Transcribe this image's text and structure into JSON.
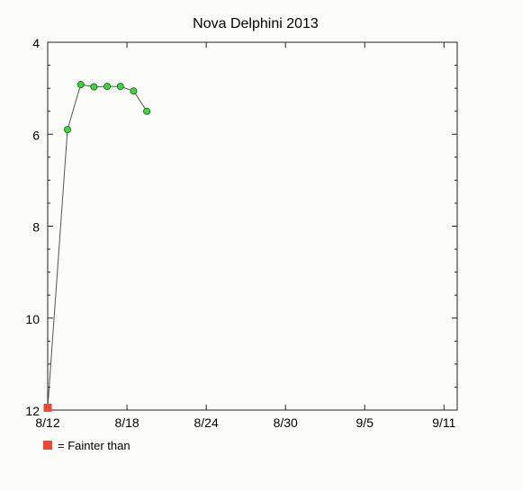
{
  "chart_data": {
    "type": "scatter",
    "title": "Nova Delphini 2013",
    "xlabel": "",
    "ylabel": "",
    "x_ticks": [
      {
        "value": "2013-08-12",
        "label": "8/12"
      },
      {
        "value": "2013-08-18",
        "label": "8/18"
      },
      {
        "value": "2013-08-24",
        "label": "8/24"
      },
      {
        "value": "2013-08-30",
        "label": "8/30"
      },
      {
        "value": "2013-09-05",
        "label": "9/5"
      },
      {
        "value": "2013-09-11",
        "label": "9/11"
      }
    ],
    "xlim": [
      "2013-08-12",
      "2013-09-12"
    ],
    "y_ticks": [
      4,
      6,
      8,
      10,
      12
    ],
    "ylim": [
      12,
      4
    ],
    "y_inverted": true,
    "grid": false,
    "series": [
      {
        "marker": "circle",
        "color": "#3ed43e",
        "points": [
          {
            "x": "2013-08-13 12:00",
            "y": 5.9
          },
          {
            "x": "2013-08-14 12:00",
            "y": 4.92
          },
          {
            "x": "2013-08-15 12:00",
            "y": 4.97
          },
          {
            "x": "2013-08-16 12:00",
            "y": 4.96
          },
          {
            "x": "2013-08-17 12:00",
            "y": 4.96
          },
          {
            "x": "2013-08-18 12:00",
            "y": 5.06
          },
          {
            "x": "2013-08-19 12:00",
            "y": 5.5
          }
        ]
      },
      {
        "name": "Fainter than",
        "marker": "square",
        "color": "#e8493a",
        "points": [
          {
            "x": "2013-08-12",
            "y": 11.95
          }
        ]
      }
    ],
    "connect_line_color": "#555555",
    "legend": {
      "text": "= Fainter than",
      "marker_color": "#e8493a",
      "placement": "bottom-left"
    }
  }
}
